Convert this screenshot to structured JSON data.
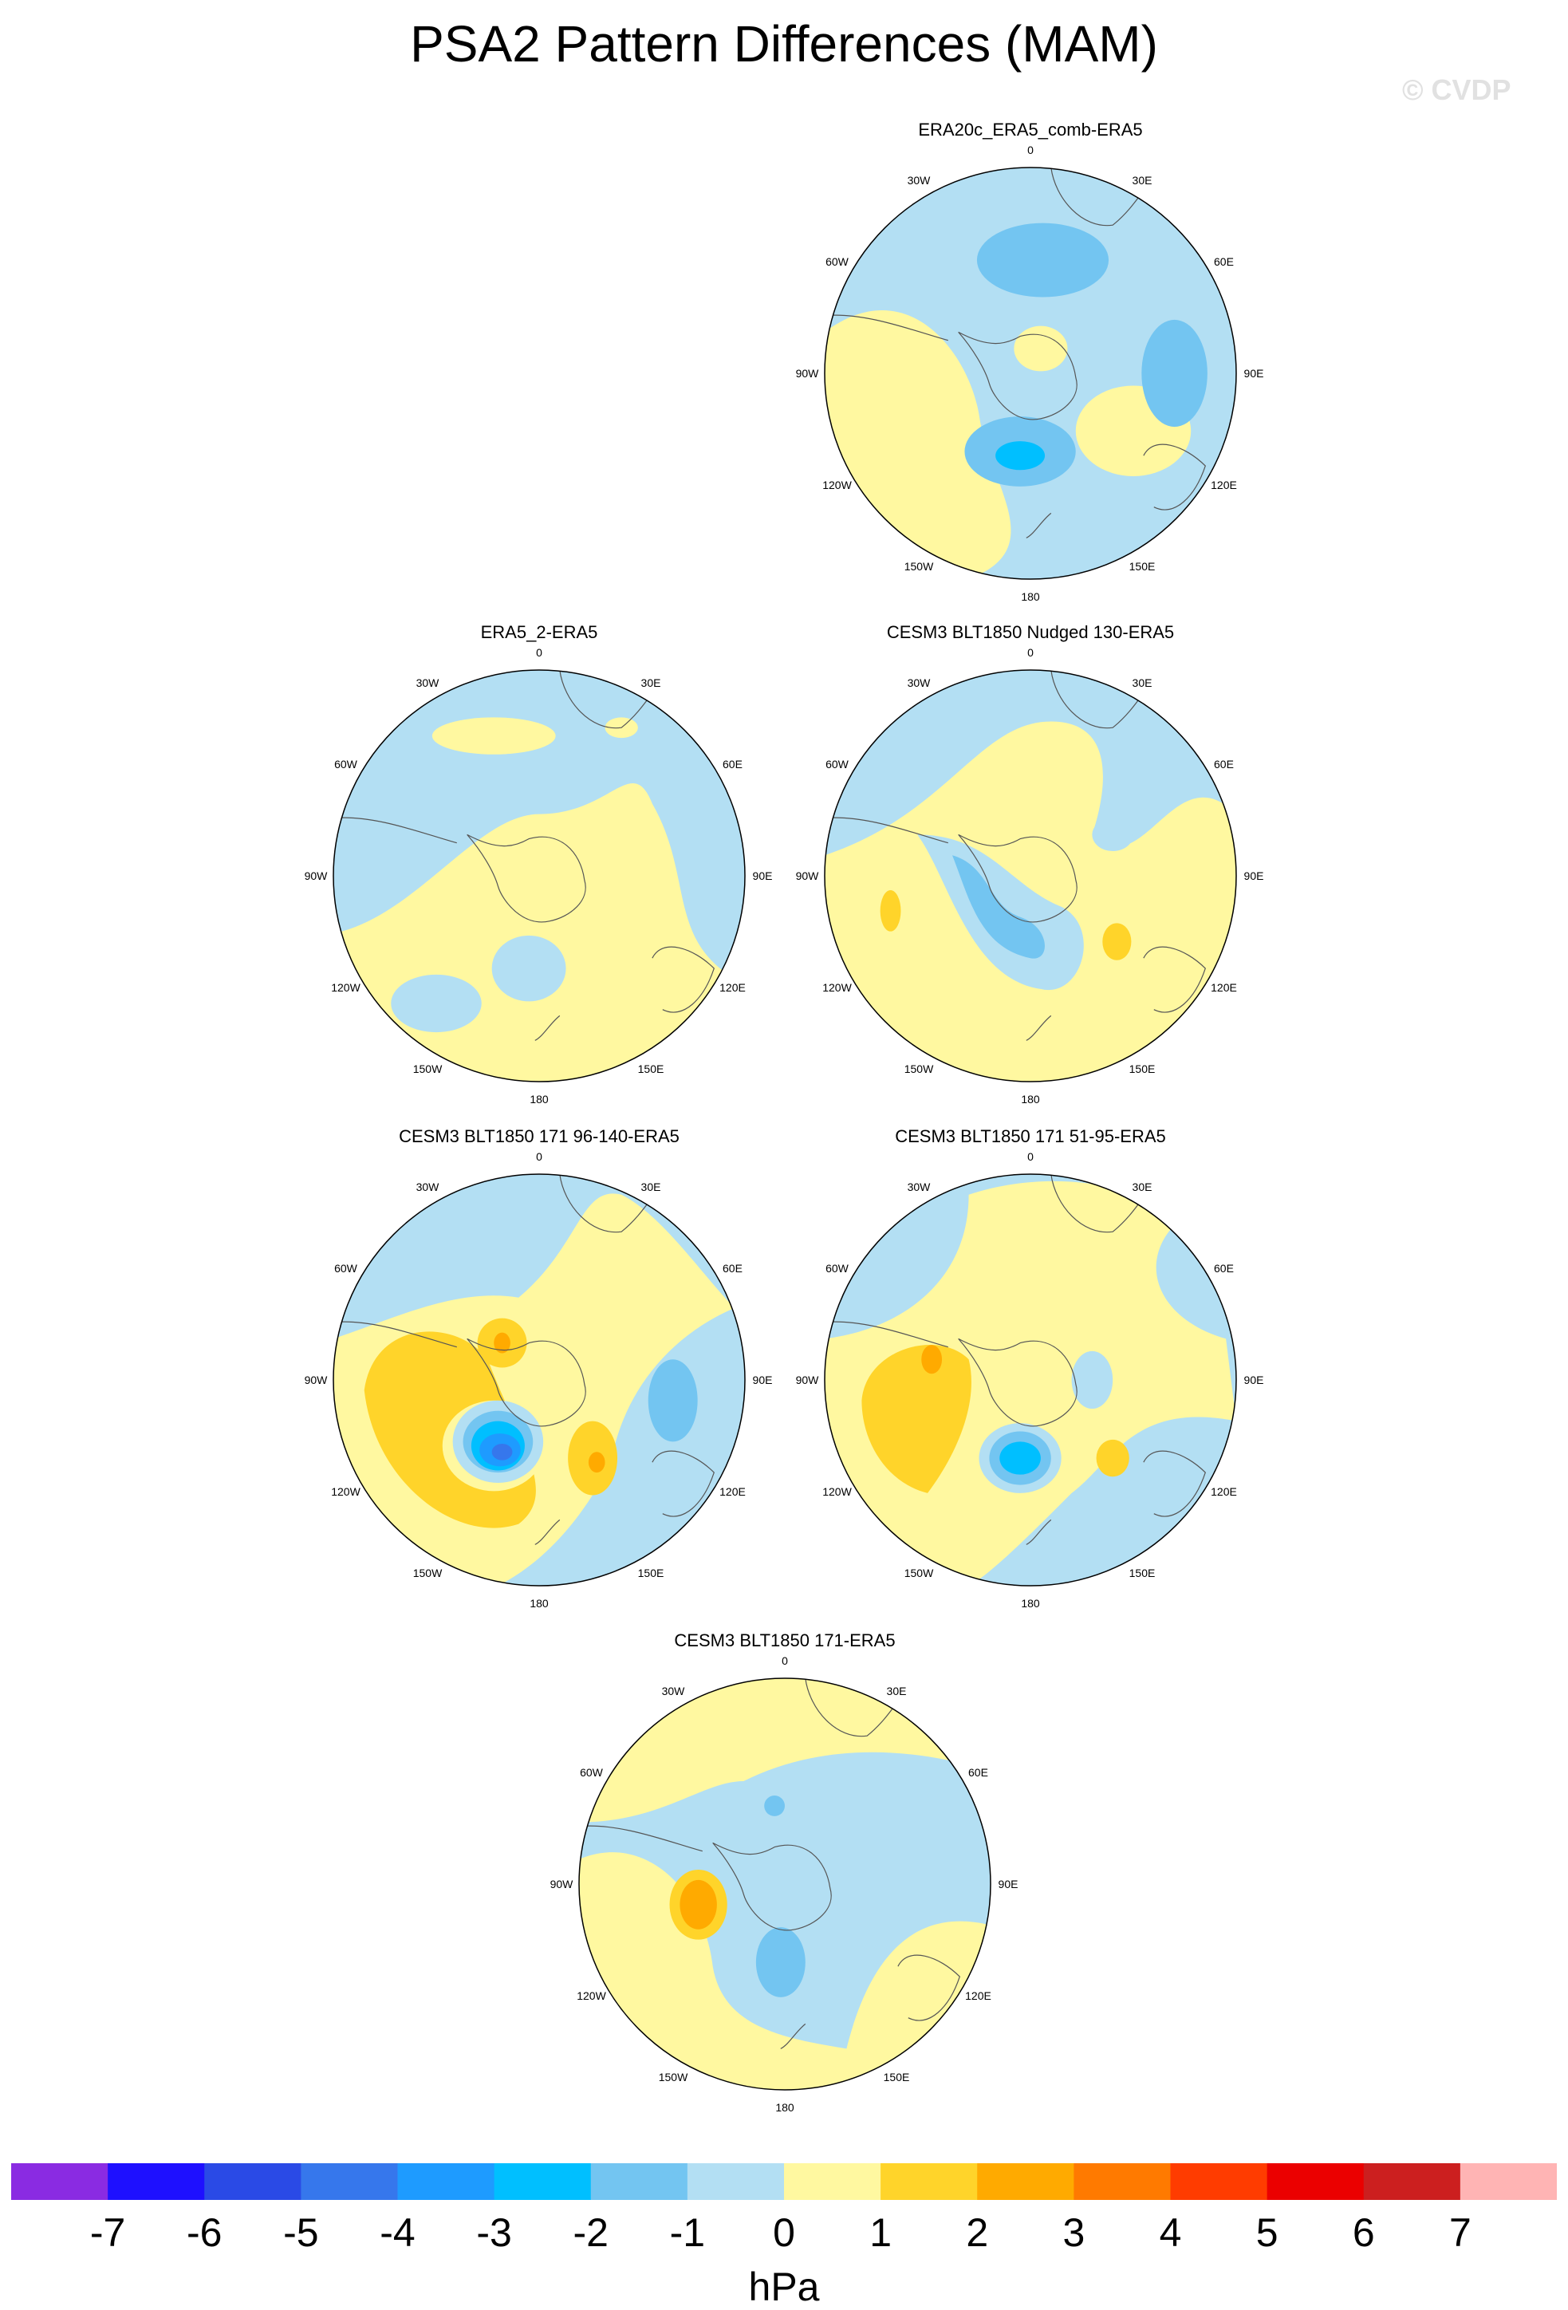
{
  "title": "PSA2 Pattern Differences (MAM)",
  "watermark": "© CVDP",
  "panels": [
    {
      "id": "p1",
      "title": "ERA20c_ERA5_comb-ERA5"
    },
    {
      "id": "p2",
      "title": "ERA5_2-ERA5"
    },
    {
      "id": "p3",
      "title": "CESM3 BLT1850 Nudged 130-ERA5"
    },
    {
      "id": "p4",
      "title": "CESM3 BLT1850 171 96-140-ERA5"
    },
    {
      "id": "p5",
      "title": "CESM3 BLT1850 171 51-95-ERA5"
    },
    {
      "id": "p6",
      "title": "CESM3 BLT1850 171-ERA5"
    }
  ],
  "lon_labels": [
    "0",
    "30E",
    "60E",
    "90E",
    "120E",
    "150E",
    "180",
    "150W",
    "120W",
    "90W",
    "60W",
    "30W"
  ],
  "colorbar": {
    "units": "hPa",
    "labels": [
      "-7",
      "-6",
      "-5",
      "-4",
      "-3",
      "-2",
      "-1",
      "0",
      "1",
      "2",
      "3",
      "4",
      "5",
      "6",
      "7"
    ],
    "colors": [
      "#8a2be2",
      "#1e10ff",
      "#2a4ae6",
      "#3677ec",
      "#1e9bff",
      "#00bfff",
      "#73c5f1",
      "#b3dff3",
      "#fff8a0",
      "#ffd42a",
      "#ffaa00",
      "#ff7a00",
      "#ff3c00",
      "#eb0000",
      "#cc1f1f",
      "#ffb4b4"
    ]
  },
  "map_colors": {
    "neg1": "#b3dff3",
    "pos1": "#fff8a0",
    "neg2": "#73c5f1",
    "pos2": "#ffd42a",
    "neg3": "#00bfff",
    "pos3": "#ffaa00",
    "neg4": "#1e9bff",
    "neg5": "#3677ec"
  }
}
